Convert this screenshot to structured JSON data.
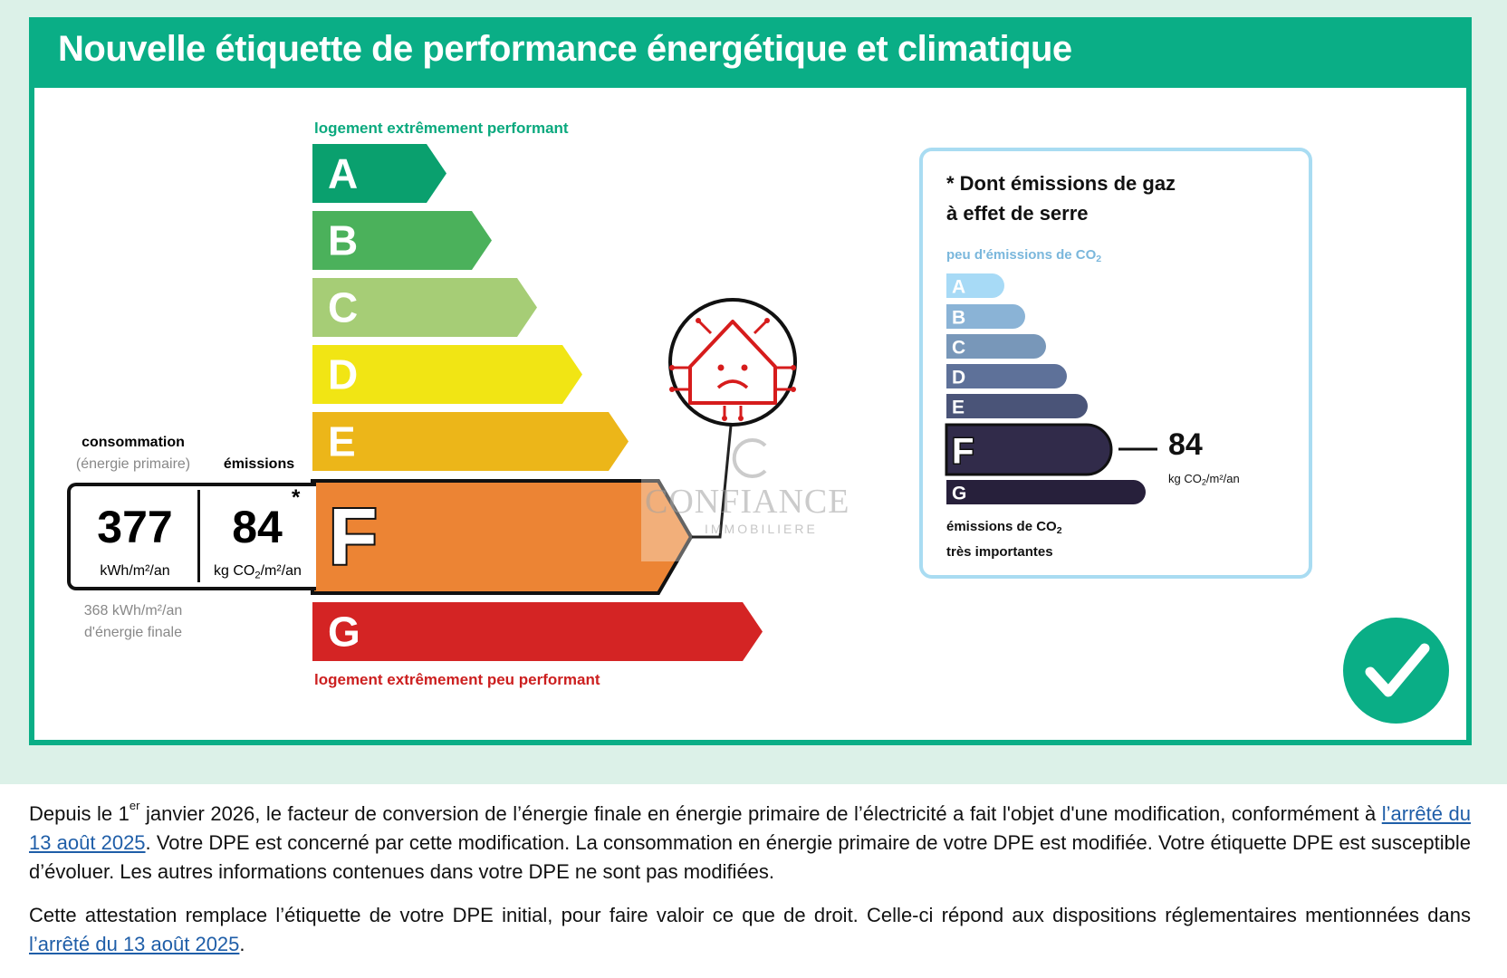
{
  "title": "Nouvelle étiquette de performance énergétique et climatique",
  "energy_label": {
    "top_note": "logement extrêmement performant",
    "bottom_note": "logement extrêmement peu performant",
    "classes": [
      {
        "letter": "A",
        "color": "#0aa06e"
      },
      {
        "letter": "B",
        "color": "#4bb15b"
      },
      {
        "letter": "C",
        "color": "#a6cd76"
      },
      {
        "letter": "D",
        "color": "#f1e514"
      },
      {
        "letter": "E",
        "color": "#ecb619"
      },
      {
        "letter": "F",
        "color": "#ec8434"
      },
      {
        "letter": "G",
        "color": "#d42424"
      }
    ],
    "current_class": "F",
    "consumption_label": "consommation",
    "consumption_sublabel": "(énergie primaire)",
    "emissions_label": "émissions",
    "consumption_value": "377",
    "consumption_unit": "kWh/m²/an",
    "emissions_value": "84",
    "emissions_unit_base": "kg CO",
    "emissions_unit_sub": "2",
    "emissions_unit_rest": "/m²/an",
    "asterisk": "*",
    "final_energy_value": "368 kWh/m²/an",
    "final_energy_label": "d'énergie finale"
  },
  "ges_label": {
    "title_line1": "* Dont émissions de gaz",
    "title_line2": "à effet de serre",
    "top_note_base": "peu d'émissions de CO",
    "top_note_sub": "2",
    "bottom_note_line1_base": "émissions de CO",
    "bottom_note_line1_sub": "2",
    "bottom_note_line2": "très importantes",
    "classes": [
      {
        "letter": "A",
        "color": "#a7daf6"
      },
      {
        "letter": "B",
        "color": "#8ab3d6"
      },
      {
        "letter": "C",
        "color": "#7897b9"
      },
      {
        "letter": "D",
        "color": "#5e7199"
      },
      {
        "letter": "E",
        "color": "#4a5478"
      },
      {
        "letter": "F",
        "color": "#312b4a"
      },
      {
        "letter": "G",
        "color": "#27203b"
      }
    ],
    "current_class": "F",
    "value": "84",
    "unit_base": "kg CO",
    "unit_sub": "2",
    "unit_rest": "/m²/an"
  },
  "watermark": {
    "name": "CONFIANCE",
    "sub": "IMMOBILIERE"
  },
  "paragraph1": {
    "p1_a": "Depuis le 1",
    "p1_sup": "er",
    "p1_b": " janvier 2026, le facteur de conversion de l’énergie finale en énergie primaire de l’électricité a fait l'objet d'une modification, conformément à ",
    "p1_link": "l’arrêté du 13 août 2025",
    "p1_c": ". Votre DPE est concerné par cette modification. La consommation en énergie primaire de votre DPE est modifiée. Votre étiquette DPE est susceptible d’évoluer. Les autres informations contenues dans votre DPE ne sont pas modifiées."
  },
  "paragraph2": {
    "p2_a": "Cette attestation remplace l’étiquette de votre DPE initial, pour faire valoir ce que de droit. Celle-ci répond aux dispositions réglementaires mentionnées dans ",
    "p2_link": "l’arrêté du 13 août 2025",
    "p2_b": "."
  },
  "colors": {
    "brand_green": "#0aae86",
    "background_mint": "#dcf1e8",
    "link_blue": "#1f5ea8",
    "ges_panel_border": "#a9dcf2",
    "alert_red": "#d61c1c"
  }
}
